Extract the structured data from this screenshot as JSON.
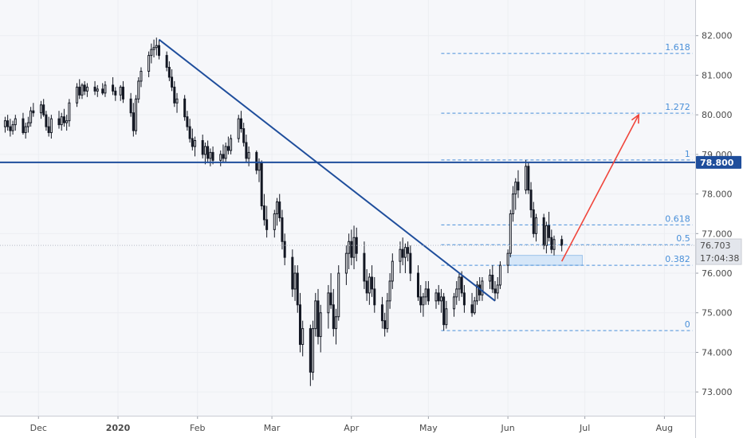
{
  "chart_data": {
    "type": "candlestick",
    "title": "",
    "y_ticks": [
      "73.000",
      "74.000",
      "75.000",
      "76.000",
      "77.000",
      "78.000",
      "79.000",
      "80.000",
      "81.000",
      "82.000"
    ],
    "ylim": [
      72.4,
      82.9
    ],
    "x_ticks": [
      {
        "label": "Dec",
        "date": "2019-12-01"
      },
      {
        "label": "2020",
        "date": "2020-01-01"
      },
      {
        "label": "Feb",
        "date": "2020-02-01"
      },
      {
        "label": "Mar",
        "date": "2020-03-01"
      },
      {
        "label": "Apr",
        "date": "2020-04-01"
      },
      {
        "label": "May",
        "date": "2020-05-01"
      },
      {
        "label": "Jun",
        "date": "2020-06-01"
      },
      {
        "label": "Jul",
        "date": "2020-07-01"
      },
      {
        "label": "Aug",
        "date": "2020-08-01"
      }
    ],
    "xlim": [
      "2019-11-16",
      "2020-08-13"
    ],
    "horizontal_level": {
      "value": 78.8,
      "label": "78.800"
    },
    "current_price": {
      "value": 76.703,
      "label": "76.703",
      "countdown": "17:04:38"
    },
    "trendline": {
      "from": {
        "date": "2020-01-17",
        "value": 81.9
      },
      "to": {
        "date": "2020-05-27",
        "value": 75.3
      }
    },
    "projection_arrow": {
      "from": {
        "date": "2020-06-22",
        "value": 76.3
      },
      "to": {
        "date": "2020-07-22",
        "value": 80.0
      }
    },
    "support_zone": {
      "from_date": "2020-06-01",
      "to_date": "2020-06-30",
      "low": 76.2,
      "high": 76.45
    },
    "fibonacci": {
      "start_date": "2020-05-06",
      "end_date": "2020-08-12",
      "levels": [
        {
          "label": "0",
          "value": 74.55
        },
        {
          "label": "0.382",
          "value": 76.2
        },
        {
          "label": "0.5",
          "value": 76.72
        },
        {
          "label": "0.618",
          "value": 77.22
        },
        {
          "label": "1",
          "value": 78.86
        },
        {
          "label": "1.272",
          "value": 80.04
        },
        {
          "label": "1.618",
          "value": 81.55
        }
      ]
    },
    "candles": [
      [
        "2019-11-18",
        79.7,
        79.95,
        79.55,
        79.85
      ],
      [
        "2019-11-19",
        79.85,
        80.0,
        79.6,
        79.7
      ],
      [
        "2019-11-20",
        79.7,
        79.9,
        79.45,
        79.6
      ],
      [
        "2019-11-21",
        79.6,
        79.85,
        79.5,
        79.75
      ],
      [
        "2019-11-22",
        79.75,
        80.0,
        79.6,
        79.9
      ],
      [
        "2019-11-25",
        79.9,
        80.05,
        79.5,
        79.55
      ],
      [
        "2019-11-26",
        79.55,
        79.8,
        79.4,
        79.7
      ],
      [
        "2019-11-27",
        79.7,
        79.95,
        79.55,
        79.8
      ],
      [
        "2019-11-28",
        79.8,
        80.2,
        79.7,
        80.1
      ],
      [
        "2019-11-29",
        80.1,
        80.3,
        79.95,
        80.05
      ],
      [
        "2019-12-02",
        80.05,
        80.35,
        79.9,
        80.25
      ],
      [
        "2019-12-03",
        80.25,
        80.4,
        79.95,
        80.0
      ],
      [
        "2019-12-04",
        80.0,
        80.1,
        79.6,
        79.7
      ],
      [
        "2019-12-05",
        79.7,
        79.95,
        79.45,
        79.55
      ],
      [
        "2019-12-06",
        79.55,
        80.0,
        79.4,
        79.9
      ],
      [
        "2019-12-09",
        79.9,
        80.1,
        79.65,
        79.75
      ],
      [
        "2019-12-10",
        79.75,
        80.05,
        79.6,
        79.95
      ],
      [
        "2019-12-11",
        79.95,
        80.15,
        79.7,
        79.8
      ],
      [
        "2019-12-12",
        79.8,
        80.0,
        79.6,
        79.85
      ],
      [
        "2019-12-13",
        79.85,
        80.4,
        79.7,
        80.3
      ],
      [
        "2019-12-16",
        80.3,
        80.8,
        80.2,
        80.7
      ],
      [
        "2019-12-17",
        80.7,
        80.9,
        80.4,
        80.5
      ],
      [
        "2019-12-18",
        80.5,
        80.8,
        80.4,
        80.75
      ],
      [
        "2019-12-19",
        80.75,
        80.85,
        80.5,
        80.6
      ],
      [
        "2019-12-20",
        80.6,
        80.8,
        80.45,
        80.7
      ],
      [
        "2019-12-23",
        80.7,
        80.85,
        80.5,
        80.6
      ],
      [
        "2019-12-24",
        80.6,
        80.75,
        80.45,
        80.65
      ],
      [
        "2019-12-26",
        80.65,
        80.8,
        80.5,
        80.55
      ],
      [
        "2019-12-27",
        80.55,
        80.85,
        80.45,
        80.75
      ],
      [
        "2019-12-30",
        80.75,
        80.95,
        80.5,
        80.6
      ],
      [
        "2019-12-31",
        80.6,
        80.7,
        80.35,
        80.5
      ],
      [
        "2020-01-02",
        80.5,
        80.75,
        80.35,
        80.7
      ],
      [
        "2020-01-03",
        80.7,
        80.85,
        80.3,
        80.4
      ],
      [
        "2020-01-06",
        80.4,
        80.55,
        79.95,
        80.05
      ],
      [
        "2020-01-07",
        80.05,
        80.3,
        79.45,
        79.6
      ],
      [
        "2020-01-08",
        79.6,
        80.5,
        79.5,
        80.4
      ],
      [
        "2020-01-09",
        80.4,
        80.95,
        80.3,
        80.85
      ],
      [
        "2020-01-10",
        80.85,
        81.2,
        80.7,
        81.1
      ],
      [
        "2020-01-13",
        81.1,
        81.6,
        80.95,
        81.5
      ],
      [
        "2020-01-14",
        81.5,
        81.8,
        81.3,
        81.65
      ],
      [
        "2020-01-15",
        81.65,
        81.9,
        81.45,
        81.7
      ],
      [
        "2020-01-16",
        81.7,
        81.95,
        81.5,
        81.75
      ],
      [
        "2020-01-17",
        81.75,
        81.9,
        81.4,
        81.5
      ],
      [
        "2020-01-20",
        81.5,
        81.6,
        81.1,
        81.2
      ],
      [
        "2020-01-21",
        81.2,
        81.35,
        80.85,
        80.95
      ],
      [
        "2020-01-22",
        80.95,
        81.15,
        80.6,
        80.7
      ],
      [
        "2020-01-23",
        80.7,
        80.85,
        80.2,
        80.3
      ],
      [
        "2020-01-24",
        80.3,
        80.55,
        80.05,
        80.4
      ],
      [
        "2020-01-27",
        80.4,
        80.5,
        79.85,
        79.95
      ],
      [
        "2020-01-28",
        79.95,
        80.1,
        79.6,
        79.7
      ],
      [
        "2020-01-29",
        79.7,
        79.9,
        79.3,
        79.4
      ],
      [
        "2020-01-30",
        79.4,
        79.65,
        79.1,
        79.2
      ],
      [
        "2020-01-31",
        79.2,
        79.45,
        78.95,
        79.35
      ],
      [
        "2020-02-03",
        79.35,
        79.5,
        78.9,
        79.0
      ],
      [
        "2020-02-04",
        79.0,
        79.3,
        78.75,
        79.2
      ],
      [
        "2020-02-05",
        79.2,
        79.35,
        78.8,
        78.9
      ],
      [
        "2020-02-06",
        78.9,
        79.15,
        78.7,
        79.05
      ],
      [
        "2020-02-07",
        79.05,
        79.2,
        78.75,
        78.85
      ],
      [
        "2020-02-10",
        78.85,
        79.1,
        78.7,
        79.0
      ],
      [
        "2020-02-11",
        79.0,
        79.25,
        78.8,
        78.9
      ],
      [
        "2020-02-12",
        78.9,
        79.3,
        78.8,
        79.2
      ],
      [
        "2020-02-13",
        79.2,
        79.45,
        79.0,
        79.1
      ],
      [
        "2020-02-14",
        79.1,
        79.5,
        79.0,
        79.4
      ],
      [
        "2020-02-17",
        79.4,
        80.0,
        79.3,
        79.9
      ],
      [
        "2020-02-18",
        79.9,
        80.1,
        79.55,
        79.65
      ],
      [
        "2020-02-19",
        79.65,
        79.8,
        79.2,
        79.3
      ],
      [
        "2020-02-20",
        79.3,
        79.5,
        78.8,
        78.9
      ],
      [
        "2020-02-21",
        78.9,
        79.2,
        78.7,
        79.05
      ],
      [
        "2020-02-24",
        79.05,
        79.1,
        78.5,
        78.6
      ],
      [
        "2020-02-25",
        78.6,
        78.9,
        78.3,
        78.8
      ],
      [
        "2020-02-26",
        78.8,
        78.85,
        77.6,
        77.7
      ],
      [
        "2020-02-27",
        77.7,
        78.0,
        77.2,
        77.35
      ],
      [
        "2020-02-28",
        77.35,
        77.7,
        76.9,
        77.1
      ],
      [
        "2020-03-02",
        77.1,
        77.6,
        76.9,
        77.5
      ],
      [
        "2020-03-03",
        77.5,
        77.9,
        77.2,
        77.8
      ],
      [
        "2020-03-04",
        77.8,
        78.0,
        77.3,
        77.4
      ],
      [
        "2020-03-05",
        77.4,
        77.6,
        76.6,
        76.8
      ],
      [
        "2020-03-06",
        76.8,
        77.0,
        76.2,
        76.4
      ],
      [
        "2020-03-09",
        76.4,
        76.6,
        75.4,
        75.6
      ],
      [
        "2020-03-10",
        75.6,
        76.2,
        75.3,
        76.0
      ],
      [
        "2020-03-11",
        76.0,
        76.2,
        75.0,
        75.2
      ],
      [
        "2020-03-12",
        75.2,
        75.5,
        74.0,
        74.2
      ],
      [
        "2020-03-13",
        74.2,
        74.8,
        73.9,
        74.6
      ],
      [
        "2020-03-16",
        74.6,
        74.7,
        73.15,
        73.5
      ],
      [
        "2020-03-17",
        73.5,
        74.8,
        73.3,
        74.6
      ],
      [
        "2020-03-18",
        74.6,
        75.5,
        74.4,
        75.3
      ],
      [
        "2020-03-19",
        75.3,
        75.6,
        74.2,
        74.4
      ],
      [
        "2020-03-20",
        74.4,
        75.2,
        74.0,
        75.0
      ],
      [
        "2020-03-23",
        75.0,
        75.7,
        74.6,
        75.5
      ],
      [
        "2020-03-24",
        75.5,
        76.0,
        75.1,
        75.2
      ],
      [
        "2020-03-25",
        75.2,
        75.6,
        74.4,
        74.6
      ],
      [
        "2020-03-26",
        74.6,
        75.1,
        74.2,
        74.9
      ],
      [
        "2020-03-27",
        74.9,
        76.2,
        74.8,
        76.0
      ],
      [
        "2020-03-30",
        76.0,
        76.7,
        75.7,
        76.5
      ],
      [
        "2020-03-31",
        76.5,
        77.0,
        76.1,
        76.8
      ],
      [
        "2020-04-01",
        76.8,
        77.1,
        76.2,
        76.4
      ],
      [
        "2020-04-02",
        76.4,
        77.2,
        76.1,
        76.9
      ],
      [
        "2020-04-03",
        76.9,
        77.15,
        76.3,
        76.5
      ],
      [
        "2020-04-06",
        76.5,
        76.8,
        75.6,
        75.8
      ],
      [
        "2020-04-07",
        75.8,
        76.1,
        75.3,
        75.5
      ],
      [
        "2020-04-08",
        75.5,
        76.0,
        75.2,
        75.9
      ],
      [
        "2020-04-09",
        75.9,
        76.2,
        75.4,
        75.6
      ],
      [
        "2020-04-10",
        75.6,
        75.9,
        75.0,
        75.2
      ],
      [
        "2020-04-13",
        75.2,
        75.4,
        74.6,
        74.8
      ],
      [
        "2020-04-14",
        74.8,
        75.0,
        74.4,
        74.6
      ],
      [
        "2020-04-15",
        74.6,
        75.5,
        74.5,
        75.3
      ],
      [
        "2020-04-16",
        75.3,
        76.0,
        75.1,
        75.8
      ],
      [
        "2020-04-17",
        75.8,
        76.5,
        75.6,
        76.3
      ],
      [
        "2020-04-20",
        76.3,
        76.8,
        76.0,
        76.6
      ],
      [
        "2020-04-21",
        76.6,
        76.9,
        76.2,
        76.4
      ],
      [
        "2020-04-22",
        76.4,
        76.75,
        76.0,
        76.65
      ],
      [
        "2020-04-23",
        76.65,
        76.8,
        76.3,
        76.5
      ],
      [
        "2020-04-24",
        76.5,
        76.7,
        75.8,
        76.0
      ],
      [
        "2020-04-27",
        76.0,
        76.2,
        75.3,
        75.4
      ],
      [
        "2020-04-28",
        75.4,
        75.7,
        75.0,
        75.2
      ],
      [
        "2020-04-29",
        75.2,
        75.5,
        74.9,
        75.4
      ],
      [
        "2020-04-30",
        75.4,
        75.8,
        75.2,
        75.6
      ],
      [
        "2020-05-01",
        75.6,
        75.8,
        75.2,
        75.3
      ],
      [
        "2020-05-04",
        75.3,
        75.6,
        75.1,
        75.5
      ],
      [
        "2020-05-05",
        75.5,
        75.7,
        75.2,
        75.3
      ],
      [
        "2020-05-06",
        75.3,
        75.6,
        75.0,
        75.4
      ],
      [
        "2020-05-07",
        75.4,
        75.5,
        74.55,
        74.7
      ],
      [
        "2020-05-08",
        74.7,
        75.3,
        74.6,
        75.1
      ],
      [
        "2020-05-11",
        75.1,
        75.5,
        74.9,
        75.4
      ],
      [
        "2020-05-12",
        75.4,
        75.8,
        75.2,
        75.6
      ],
      [
        "2020-05-13",
        75.6,
        76.0,
        75.3,
        75.9
      ],
      [
        "2020-05-14",
        75.9,
        76.05,
        75.4,
        75.5
      ],
      [
        "2020-05-15",
        75.5,
        75.7,
        75.0,
        75.2
      ],
      [
        "2020-05-18",
        75.2,
        75.5,
        74.9,
        75.0
      ],
      [
        "2020-05-19",
        75.0,
        75.4,
        74.95,
        75.3
      ],
      [
        "2020-05-20",
        75.3,
        75.8,
        75.2,
        75.7
      ],
      [
        "2020-05-21",
        75.7,
        75.9,
        75.3,
        75.45
      ],
      [
        "2020-05-22",
        75.45,
        75.9,
        75.3,
        75.8
      ],
      [
        "2020-05-25",
        75.8,
        76.1,
        75.6,
        75.95
      ],
      [
        "2020-05-26",
        75.95,
        76.2,
        75.5,
        75.6
      ],
      [
        "2020-05-27",
        75.6,
        75.8,
        75.3,
        75.5
      ],
      [
        "2020-05-28",
        75.5,
        75.9,
        75.35,
        75.7
      ],
      [
        "2020-05-29",
        75.7,
        76.3,
        75.6,
        76.2
      ],
      [
        "2020-06-01",
        76.2,
        76.6,
        76.0,
        76.5
      ],
      [
        "2020-06-02",
        76.5,
        77.6,
        76.4,
        77.5
      ],
      [
        "2020-06-03",
        77.5,
        78.2,
        77.3,
        78.0
      ],
      [
        "2020-06-04",
        78.0,
        78.4,
        77.6,
        78.3
      ],
      [
        "2020-06-05",
        78.3,
        78.6,
        77.9,
        78.1
      ],
      [
        "2020-06-08",
        78.1,
        78.86,
        78.0,
        78.7
      ],
      [
        "2020-06-09",
        78.7,
        78.8,
        78.0,
        78.1
      ],
      [
        "2020-06-10",
        78.1,
        78.3,
        77.4,
        77.6
      ],
      [
        "2020-06-11",
        77.6,
        77.8,
        76.9,
        77.0
      ],
      [
        "2020-06-12",
        77.0,
        77.5,
        76.8,
        77.4
      ],
      [
        "2020-06-15",
        77.4,
        77.5,
        76.6,
        76.7
      ],
      [
        "2020-06-16",
        76.7,
        77.3,
        76.5,
        77.2
      ],
      [
        "2020-06-17",
        77.2,
        77.55,
        76.8,
        76.9
      ],
      [
        "2020-06-18",
        76.9,
        77.1,
        76.5,
        76.6
      ],
      [
        "2020-06-19",
        76.6,
        76.95,
        76.45,
        76.85
      ],
      [
        "2020-06-22",
        76.85,
        76.95,
        76.55,
        76.7
      ]
    ]
  }
}
